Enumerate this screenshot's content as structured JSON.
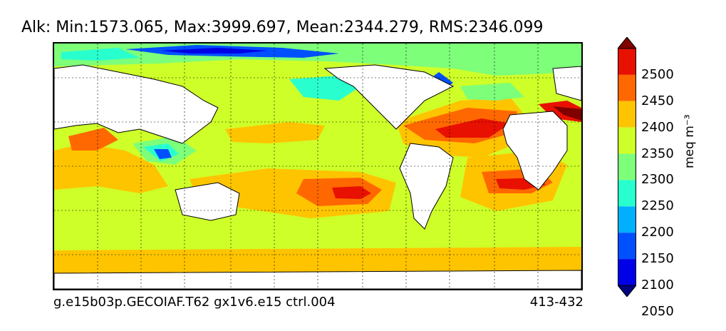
{
  "title": "Alk: Min:1573.065, Max:3999.697, Mean:2344.279, RMS:2346.099",
  "footer": {
    "run_name": "g.e15b03p.GECOIAF.T62 gx1v6.e15 ctrl.004",
    "years": "413-432"
  },
  "colorbar": {
    "unit": "meq m⁻³",
    "ticks": [
      "2500",
      "2450",
      "2400",
      "2350",
      "2300",
      "2250",
      "2200",
      "2150",
      "2100",
      "2050"
    ],
    "bins": [
      {
        "range": "<2050",
        "color": "#000080"
      },
      {
        "range": "2050-2100",
        "color": "#0000e8"
      },
      {
        "range": "2100-2150",
        "color": "#0050ff"
      },
      {
        "range": "2150-2200",
        "color": "#00b0ff"
      },
      {
        "range": "2200-2250",
        "color": "#29ffce"
      },
      {
        "range": "2250-2300",
        "color": "#7dff7a"
      },
      {
        "range": "2300-2350",
        "color": "#ceff29"
      },
      {
        "range": "2350-2400",
        "color": "#ffc400"
      },
      {
        "range": "2400-2450",
        "color": "#ff6800"
      },
      {
        "range": "2450-2500",
        "color": "#e81000"
      },
      {
        "range": ">2500",
        "color": "#800000"
      }
    ]
  },
  "map": {
    "projection": "cylindrical",
    "grid": true,
    "land_color": "#ffffff"
  }
}
